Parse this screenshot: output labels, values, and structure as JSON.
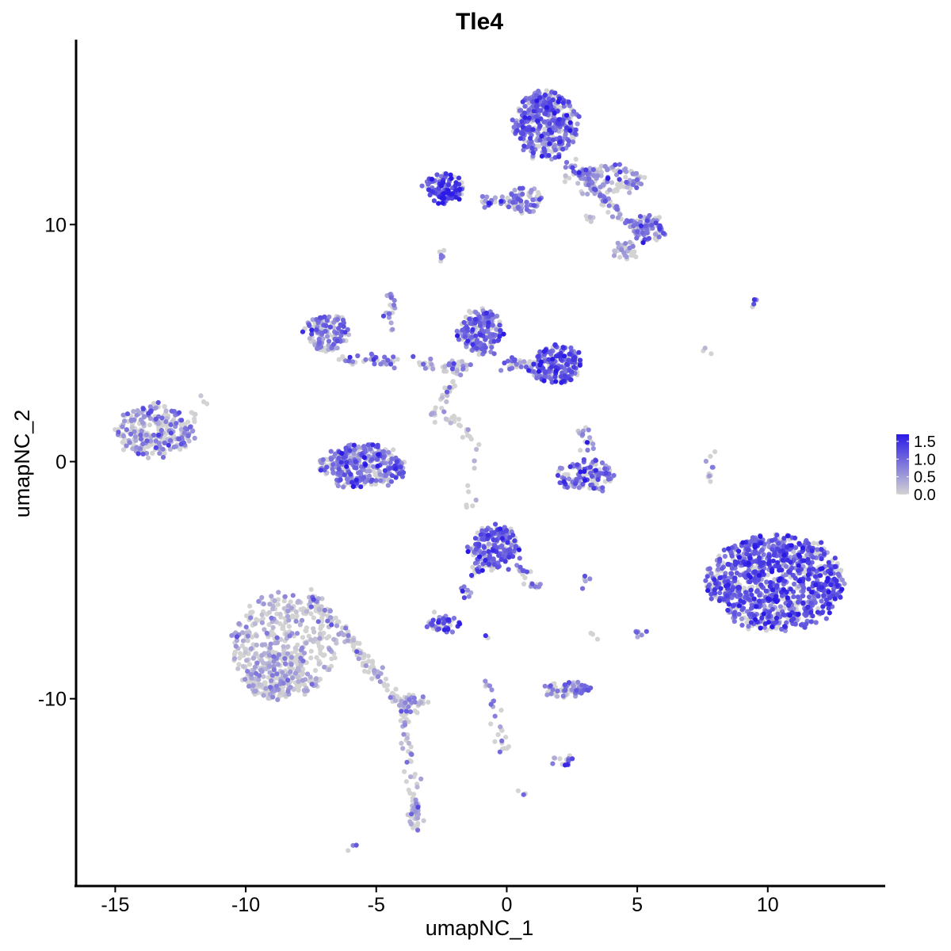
{
  "chart_data": {
    "type": "scatter",
    "title": "Tle4",
    "xlabel": "umapNC_1",
    "ylabel": "umapNC_2",
    "xlim": [
      -16.5,
      14.5
    ],
    "ylim": [
      -17.9,
      17.8
    ],
    "x_ticks": [
      -15,
      -10,
      -5,
      0,
      5,
      10
    ],
    "x_tick_labels": [
      "-15",
      "-10",
      "-5",
      "0",
      "5",
      "10"
    ],
    "y_ticks": [
      -10,
      0,
      10
    ],
    "y_tick_labels": [
      "-10",
      "0",
      "10"
    ],
    "grid": false,
    "legend_position": "right",
    "color_scale": {
      "low_color": "#d3d3d3",
      "high_color": "#2b1ae6",
      "min": 0.0,
      "max": 1.7,
      "breaks": [
        0.0,
        0.5,
        1.0,
        1.5
      ],
      "break_labels": [
        "0.0",
        "0.5",
        "1.0",
        "1.5"
      ]
    },
    "clusters": [
      {
        "cx": -13.5,
        "cy": 1.3,
        "rx": 1.4,
        "ry": 1.1,
        "n": 260,
        "expr": 0.55
      },
      {
        "cx": -8.5,
        "cy": -7.8,
        "rx": 2.0,
        "ry": 2.2,
        "n": 420,
        "expr": 0.2
      },
      {
        "cx": -9.0,
        "cy": -9.0,
        "rx": 1.1,
        "ry": 1.0,
        "n": 120,
        "expr": 0.3
      },
      {
        "cx": -3.7,
        "cy": -10.2,
        "rx": 0.6,
        "ry": 0.4,
        "n": 40,
        "expr": 0.35
      },
      {
        "cx": -3.5,
        "cy": -15.0,
        "rx": 0.3,
        "ry": 0.5,
        "n": 25,
        "expr": 0.3
      },
      {
        "cx": -5.5,
        "cy": -0.2,
        "rx": 1.6,
        "ry": 0.9,
        "n": 330,
        "expr": 0.7
      },
      {
        "cx": -6.9,
        "cy": 5.4,
        "rx": 0.8,
        "ry": 0.8,
        "n": 120,
        "expr": 0.65
      },
      {
        "cx": -1.0,
        "cy": 5.5,
        "rx": 0.8,
        "ry": 0.9,
        "n": 190,
        "expr": 0.75
      },
      {
        "cx": 1.9,
        "cy": 4.1,
        "rx": 0.9,
        "ry": 0.8,
        "n": 200,
        "expr": 0.9
      },
      {
        "cx": 1.5,
        "cy": 14.2,
        "rx": 1.2,
        "ry": 1.4,
        "n": 420,
        "expr": 0.8
      },
      {
        "cx": 3.8,
        "cy": 11.9,
        "rx": 1.5,
        "ry": 0.6,
        "n": 120,
        "expr": 0.45
      },
      {
        "cx": 5.4,
        "cy": 9.8,
        "rx": 0.6,
        "ry": 0.6,
        "n": 70,
        "expr": 0.7
      },
      {
        "cx": 4.6,
        "cy": 8.9,
        "rx": 0.5,
        "ry": 0.3,
        "n": 30,
        "expr": 0.3
      },
      {
        "cx": -2.4,
        "cy": 11.5,
        "rx": 0.7,
        "ry": 0.6,
        "n": 120,
        "expr": 1.0
      },
      {
        "cx": 0.7,
        "cy": 11.0,
        "rx": 0.6,
        "ry": 0.6,
        "n": 50,
        "expr": 0.6
      },
      {
        "cx": -0.5,
        "cy": -3.6,
        "rx": 0.9,
        "ry": 0.9,
        "n": 190,
        "expr": 0.85
      },
      {
        "cx": -2.4,
        "cy": -6.8,
        "rx": 0.6,
        "ry": 0.3,
        "n": 45,
        "expr": 0.85
      },
      {
        "cx": 2.3,
        "cy": -9.6,
        "rx": 0.9,
        "ry": 0.3,
        "n": 70,
        "expr": 0.6
      },
      {
        "cx": 3.0,
        "cy": -0.6,
        "rx": 1.1,
        "ry": 0.6,
        "n": 110,
        "expr": 0.75
      },
      {
        "cx": 10.3,
        "cy": -5.1,
        "rx": 2.6,
        "ry": 2.0,
        "n": 1050,
        "expr": 0.9
      },
      {
        "cx": 2.2,
        "cy": -12.5,
        "rx": 0.4,
        "ry": 0.3,
        "n": 15,
        "expr": 0.8
      }
    ],
    "streams": [
      {
        "x0": -1.0,
        "y0": 11.0,
        "x1": 0.6,
        "y1": 11.0,
        "n": 30,
        "expr": 0.75
      },
      {
        "x0": 2.5,
        "y0": 12.5,
        "x1": 5.2,
        "y1": 9.6,
        "n": 90,
        "expr": 0.55
      },
      {
        "x0": -6.4,
        "y0": 4.3,
        "x1": -1.4,
        "y1": 4.0,
        "n": 70,
        "expr": 0.55
      },
      {
        "x0": -0.2,
        "y0": 4.1,
        "x1": 1.4,
        "y1": 4.1,
        "n": 40,
        "expr": 0.7
      },
      {
        "x0": -1.7,
        "y0": 4.2,
        "x1": -2.8,
        "y1": 1.8,
        "n": 40,
        "expr": 0.2
      },
      {
        "x0": -2.3,
        "y0": 2.0,
        "x1": -1.0,
        "y1": 0.8,
        "n": 20,
        "expr": 0.1
      },
      {
        "x0": -1.2,
        "y0": 0.7,
        "x1": -1.5,
        "y1": -2.0,
        "n": 10,
        "expr": 0.2
      },
      {
        "x0": -4.5,
        "y0": 7.2,
        "x1": -4.4,
        "y1": 5.6,
        "n": 20,
        "expr": 0.5
      },
      {
        "x0": -7.5,
        "y0": -5.5,
        "x1": -4.0,
        "y1": -10.3,
        "n": 120,
        "expr": 0.2
      },
      {
        "x0": -4.0,
        "y0": -10.3,
        "x1": -3.4,
        "y1": -15.3,
        "n": 50,
        "expr": 0.25
      },
      {
        "x0": -1.0,
        "y0": -4.2,
        "x1": -1.8,
        "y1": -6.0,
        "n": 20,
        "expr": 0.8
      },
      {
        "x0": 0.3,
        "y0": -4.2,
        "x1": 1.1,
        "y1": -5.4,
        "n": 20,
        "expr": 0.5
      },
      {
        "x0": -0.8,
        "y0": -9.3,
        "x1": -0.1,
        "y1": -12.2,
        "n": 25,
        "expr": 0.6
      },
      {
        "x0": 2.9,
        "y0": 1.5,
        "x1": 3.3,
        "y1": -0.4,
        "n": 25,
        "expr": 0.55
      },
      {
        "x0": 7.9,
        "y0": 0.5,
        "x1": 7.8,
        "y1": -0.8,
        "n": 10,
        "expr": 0.4
      },
      {
        "x0": -11.6,
        "y0": 2.8,
        "x1": -12.3,
        "y1": 0.9,
        "n": 12,
        "expr": 0.1
      },
      {
        "x0": 7.6,
        "y0": 4.8,
        "x1": 7.9,
        "y1": 4.5,
        "n": 3,
        "expr": 0.6
      },
      {
        "x0": -2.6,
        "y0": 8.4,
        "x1": -2.6,
        "y1": 8.8,
        "n": 6,
        "expr": 0.7
      },
      {
        "x0": 9.5,
        "y0": 6.7,
        "x1": 9.7,
        "y1": 6.7,
        "n": 4,
        "expr": 0.9
      },
      {
        "x0": 3.2,
        "y0": -5.0,
        "x1": 2.8,
        "y1": -5.1,
        "n": 5,
        "expr": 0.6
      },
      {
        "x0": 5.1,
        "y0": -7.1,
        "x1": 5.1,
        "y1": -7.6,
        "n": 6,
        "expr": 0.6
      },
      {
        "x0": -6.0,
        "y0": -16.3,
        "x1": -5.9,
        "y1": -16.2,
        "n": 3,
        "expr": 0.6
      },
      {
        "x0": 0.6,
        "y0": -13.9,
        "x1": 0.7,
        "y1": -14.0,
        "n": 3,
        "expr": 0.3
      },
      {
        "x0": 3.1,
        "y0": 10.5,
        "x1": 3.4,
        "y1": 10.1,
        "n": 5,
        "expr": 0.2
      },
      {
        "x0": 3.3,
        "y0": -7.3,
        "x1": 3.4,
        "y1": -7.6,
        "n": 3,
        "expr": 0.2
      },
      {
        "x0": -0.9,
        "y0": -7.3,
        "x1": -0.8,
        "y1": -7.5,
        "n": 2,
        "expr": 0.6
      }
    ]
  }
}
